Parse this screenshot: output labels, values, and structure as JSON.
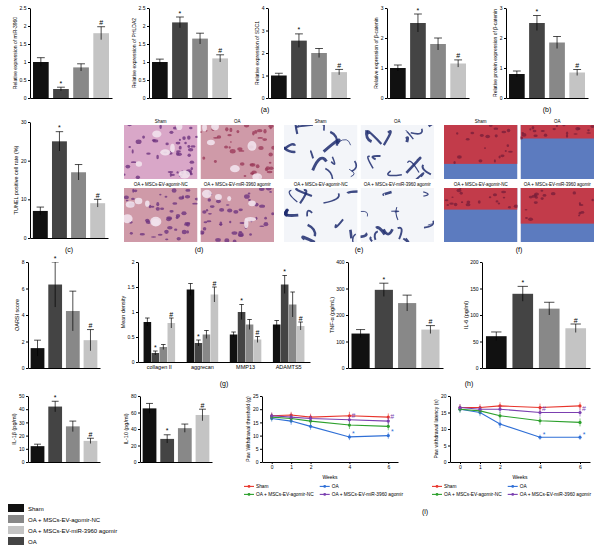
{
  "chart_data": [
    {
      "type": "bar",
      "ylabel": "Relative expression of miR-3960",
      "categories": [
        null,
        null,
        null,
        null
      ],
      "values": [
        1.0,
        0.25,
        0.85,
        1.8
      ],
      "error": [
        0.12,
        0.05,
        0.1,
        0.18
      ],
      "annotations": [
        null,
        "*",
        null,
        "#"
      ],
      "colors": [
        "#111111",
        "#444444",
        "#888888",
        "#c4c4c4"
      ],
      "ylim": [
        0,
        2.5
      ],
      "yticks": [
        0,
        0.5,
        1,
        1.5,
        2,
        2.5
      ],
      "tick_labels": "y"
    },
    {
      "type": "bar",
      "ylabel": "Relative expression of PHLDA2",
      "categories": [
        null,
        null,
        null,
        null
      ],
      "values": [
        1.0,
        2.1,
        1.65,
        1.1
      ],
      "error": [
        0.08,
        0.15,
        0.15,
        0.1
      ],
      "annotations": [
        null,
        "*",
        null,
        "#"
      ],
      "colors": [
        "#111111",
        "#444444",
        "#888888",
        "#c4c4c4"
      ],
      "ylim": [
        0,
        2.5
      ],
      "yticks": [
        0,
        0.5,
        1,
        1.5,
        2,
        2.5
      ],
      "tick_labels": "y"
    },
    {
      "type": "bar",
      "ylabel": "Relative expression of SDC1",
      "categories": [
        null,
        null,
        null,
        null
      ],
      "values": [
        1.0,
        2.55,
        2.0,
        1.15
      ],
      "error": [
        0.1,
        0.3,
        0.2,
        0.12
      ],
      "annotations": [
        null,
        "*",
        null,
        "#"
      ],
      "colors": [
        "#111111",
        "#444444",
        "#888888",
        "#c4c4c4"
      ],
      "ylim": [
        0,
        4
      ],
      "yticks": [
        0,
        1,
        2,
        3,
        4
      ],
      "tick_labels": "y"
    },
    {
      "type": "bar",
      "ylabel": "Relative expression of β-catenin",
      "categories": [
        null,
        null,
        null,
        null
      ],
      "values": [
        1.0,
        2.5,
        1.8,
        1.15
      ],
      "error": [
        0.1,
        0.3,
        0.2,
        0.12
      ],
      "annotations": [
        null,
        "*",
        null,
        "#"
      ],
      "colors": [
        "#111111",
        "#444444",
        "#888888",
        "#c4c4c4"
      ],
      "ylim": [
        0,
        3
      ],
      "yticks": [
        0,
        1,
        2,
        3
      ],
      "tick_labels": "y"
    },
    {
      "type": "bar",
      "ylabel": "Relative protein expression of β-catenin",
      "categories": [
        null,
        null,
        null,
        null
      ],
      "values": [
        0.8,
        2.5,
        1.85,
        0.85
      ],
      "error": [
        0.1,
        0.25,
        0.2,
        0.1
      ],
      "annotations": [
        null,
        "*",
        null,
        "#"
      ],
      "colors": [
        "#111111",
        "#444444",
        "#888888",
        "#c4c4c4"
      ],
      "ylim": [
        0,
        3
      ],
      "yticks": [
        0,
        1,
        2,
        3
      ],
      "tick_labels": "y"
    },
    {
      "type": "bar",
      "ylabel": "TUNEL positive cell rate (%)",
      "categories": [
        null,
        null,
        null,
        null
      ],
      "values": [
        7,
        25,
        17,
        9
      ],
      "error": [
        1,
        2.5,
        2,
        1
      ],
      "annotations": [
        null,
        "*",
        null,
        "#"
      ],
      "colors": [
        "#111111",
        "#444444",
        "#888888",
        "#c4c4c4"
      ],
      "ylim": [
        0,
        30
      ],
      "yticks": [
        0,
        10,
        20,
        30
      ],
      "tick_labels": "y"
    },
    {
      "type": "bar",
      "ylabel": "OARSI score",
      "categories": [
        null,
        null,
        null,
        null
      ],
      "values": [
        1.5,
        6.3,
        4.3,
        2.1
      ],
      "error": [
        0.6,
        1.7,
        1.5,
        0.8
      ],
      "annotations": [
        null,
        "*",
        null,
        "#"
      ],
      "colors": [
        "#111111",
        "#444444",
        "#888888",
        "#c4c4c4"
      ],
      "ylim": [
        0,
        8
      ],
      "yticks": [
        0,
        2,
        4,
        6,
        8
      ],
      "tick_labels": "y"
    },
    {
      "type": "bar",
      "ylabel": "Mean density",
      "categories": [
        "collagen II",
        "aggrecan",
        "MMP13",
        "ADAMTS5"
      ],
      "series": [
        {
          "name": "Sham",
          "color": "#111111",
          "values": [
            0.8,
            1.45,
            0.55,
            0.75
          ],
          "error": [
            0.08,
            0.12,
            0.05,
            0.08
          ],
          "annotations": [
            null,
            null,
            null,
            null
          ]
        },
        {
          "name": "OA",
          "color": "#444444",
          "values": [
            0.18,
            0.38,
            1.0,
            1.55
          ],
          "error": [
            0.04,
            0.06,
            0.15,
            0.18
          ],
          "annotations": [
            "*",
            "*",
            "*",
            "*"
          ]
        },
        {
          "name": "OA + MSCs-EV-agomir-NC",
          "color": "#888888",
          "values": [
            0.3,
            0.55,
            0.75,
            1.15
          ],
          "error": [
            0.05,
            0.08,
            0.1,
            0.25
          ],
          "annotations": [
            null,
            null,
            null,
            null
          ]
        },
        {
          "name": "OA + MSCs-EV-miR-3960 agomir",
          "color": "#c4c4c4",
          "values": [
            0.78,
            1.35,
            0.45,
            0.72
          ],
          "error": [
            0.1,
            0.15,
            0.06,
            0.08
          ],
          "annotations": [
            "#",
            "#",
            "#",
            "#"
          ]
        }
      ],
      "ylim": [
        0,
        2
      ],
      "yticks": [
        0,
        0.5,
        1,
        1.5,
        2
      ],
      "legend": "bottom"
    },
    {
      "type": "bar",
      "ylabel": "TNF-α (pg/mL)",
      "categories": [
        null,
        null,
        null,
        null
      ],
      "values": [
        130,
        295,
        245,
        145
      ],
      "error": [
        15,
        25,
        30,
        15
      ],
      "annotations": [
        null,
        "*",
        null,
        "#"
      ],
      "colors": [
        "#111111",
        "#444444",
        "#888888",
        "#c4c4c4"
      ],
      "ylim": [
        0,
        400
      ],
      "yticks": [
        0,
        100,
        200,
        300,
        400
      ],
      "tick_labels": "y"
    },
    {
      "type": "bar",
      "ylabel": "IL-6 (pg/ml)",
      "categories": [
        null,
        null,
        null,
        null
      ],
      "values": [
        60,
        140,
        112,
        75
      ],
      "error": [
        8,
        14,
        12,
        8
      ],
      "annotations": [
        null,
        "*",
        null,
        "#"
      ],
      "colors": [
        "#111111",
        "#444444",
        "#888888",
        "#c4c4c4"
      ],
      "ylim": [
        0,
        200
      ],
      "yticks": [
        0,
        50,
        100,
        150,
        200
      ],
      "tick_labels": "y"
    },
    {
      "type": "bar",
      "ylabel": "IL-1β (pg/ml)",
      "categories": [
        null,
        null,
        null,
        null
      ],
      "values": [
        12,
        42,
        27,
        16
      ],
      "error": [
        1.5,
        4,
        4,
        2
      ],
      "annotations": [
        null,
        "*",
        null,
        "#"
      ],
      "colors": [
        "#111111",
        "#444444",
        "#888888",
        "#c4c4c4"
      ],
      "ylim": [
        0,
        50
      ],
      "yticks": [
        0,
        10,
        20,
        30,
        40,
        50
      ],
      "tick_labels": "y"
    },
    {
      "type": "bar",
      "ylabel": "IL-10 (pg/ml)",
      "categories": [
        null,
        null,
        null,
        null
      ],
      "values": [
        65,
        28,
        41,
        57
      ],
      "error": [
        6,
        5,
        5,
        7
      ],
      "annotations": [
        null,
        "*",
        null,
        "#"
      ],
      "colors": [
        "#111111",
        "#444444",
        "#888888",
        "#c4c4c4"
      ],
      "ylim": [
        0,
        80
      ],
      "yticks": [
        0,
        20,
        40,
        60,
        80
      ],
      "tick_labels": "y"
    },
    {
      "type": "line",
      "ylabel": "Paw Withdrawal threshold (g)",
      "xlabel": "Weeks",
      "x": [
        0,
        1,
        2,
        4,
        6
      ],
      "xlim": [
        -0.5,
        6.5
      ],
      "xticks": [
        0,
        1,
        2,
        4,
        6
      ],
      "ylim": [
        0,
        25
      ],
      "yticks": [
        0,
        5,
        10,
        15,
        20,
        25
      ],
      "marker": "circle",
      "legend": "bottom",
      "series": [
        {
          "name": "Sham",
          "color": "#e8352c",
          "values": [
            17.5,
            17.8,
            17,
            17.5,
            17
          ],
          "error": [
            1.2,
            1.2,
            1.3,
            1.5,
            1.4
          ],
          "annotations": [
            null,
            null,
            null,
            null,
            null
          ]
        },
        {
          "name": "OA",
          "color": "#2f6fd6",
          "values": [
            16.5,
            15.5,
            13.5,
            9.5,
            10
          ],
          "error": [
            1.2,
            1.4,
            1.3,
            1.2,
            1.2
          ],
          "annotations": [
            null,
            null,
            null,
            "*",
            "*"
          ]
        },
        {
          "name": "OA + MSCs-EV-agomir-NC",
          "color": "#2ca02c",
          "values": [
            17,
            16.5,
            15.5,
            14,
            13.5
          ],
          "error": [
            1.2,
            1.3,
            1.4,
            1.5,
            1.5
          ],
          "annotations": [
            null,
            null,
            null,
            null,
            null
          ]
        },
        {
          "name": "OA + MSCs-EV-miR-3960 agomir",
          "color": "#7b3fb0",
          "values": [
            17.5,
            17,
            16.5,
            16,
            15.5
          ],
          "error": [
            1.2,
            1.3,
            1.3,
            1.4,
            1.4
          ],
          "annotations": [
            null,
            null,
            null,
            "#",
            "#"
          ]
        }
      ]
    },
    {
      "type": "line",
      "ylabel": "Paw withdrawal latency (s)",
      "xlabel": "Weeks",
      "x": [
        0,
        1,
        2,
        4,
        6
      ],
      "xlim": [
        -0.5,
        6.5
      ],
      "xticks": [
        0,
        1,
        2,
        4,
        6
      ],
      "ylim": [
        0,
        20
      ],
      "yticks": [
        0,
        5,
        10,
        15,
        20
      ],
      "marker": "circle",
      "legend": "bottom",
      "series": [
        {
          "name": "Sham",
          "color": "#e8352c",
          "values": [
            16.5,
            16.5,
            17,
            16.5,
            17
          ],
          "error": [
            1,
            1,
            1.1,
            1.2,
            1.1
          ],
          "annotations": [
            null,
            null,
            null,
            null,
            null
          ]
        },
        {
          "name": "OA",
          "color": "#2f6fd6",
          "values": [
            16,
            15,
            11.5,
            7.5,
            7.5
          ],
          "error": [
            1,
            1.1,
            1.2,
            0.8,
            0.8
          ],
          "annotations": [
            null,
            null,
            null,
            "*",
            "*"
          ]
        },
        {
          "name": "OA + MSCs-EV-agomir-NC",
          "color": "#2ca02c",
          "values": [
            16,
            15.5,
            14,
            12.5,
            12
          ],
          "error": [
            1,
            1.1,
            1.2,
            1.2,
            1.2
          ],
          "annotations": [
            null,
            null,
            null,
            null,
            null
          ]
        },
        {
          "name": "OA + MSCs-EV-miR-3960 agomir",
          "color": "#7b3fb0",
          "values": [
            16.5,
            16,
            16,
            15,
            15
          ],
          "error": [
            1,
            1,
            1.1,
            1.2,
            1.2
          ],
          "annotations": [
            null,
            null,
            null,
            "#",
            "#"
          ]
        }
      ]
    }
  ],
  "image_panels": [
    {
      "captions": [
        "Sham",
        "OA",
        "OA + MSCs-EV-agomir-NC",
        "OA + MSCs-EV-miR-3960 agomir"
      ]
    },
    {
      "captions": [
        "Sham",
        "OA",
        "OA + MSCs-EV-agomir-NC",
        "OA + MSCs-EV-miR-3960 agomir"
      ]
    },
    {
      "captions": [
        "Sham",
        "OA",
        "OA + MSCs-EV-agomir-NC",
        "OA + MSCs-EV-miR-3960 agomir"
      ]
    }
  ],
  "panel_labels": [
    "(a)",
    "(b)",
    "(c)",
    "(d)",
    "(e)",
    "(f)",
    "(g)",
    "(h)",
    "(i)"
  ]
}
